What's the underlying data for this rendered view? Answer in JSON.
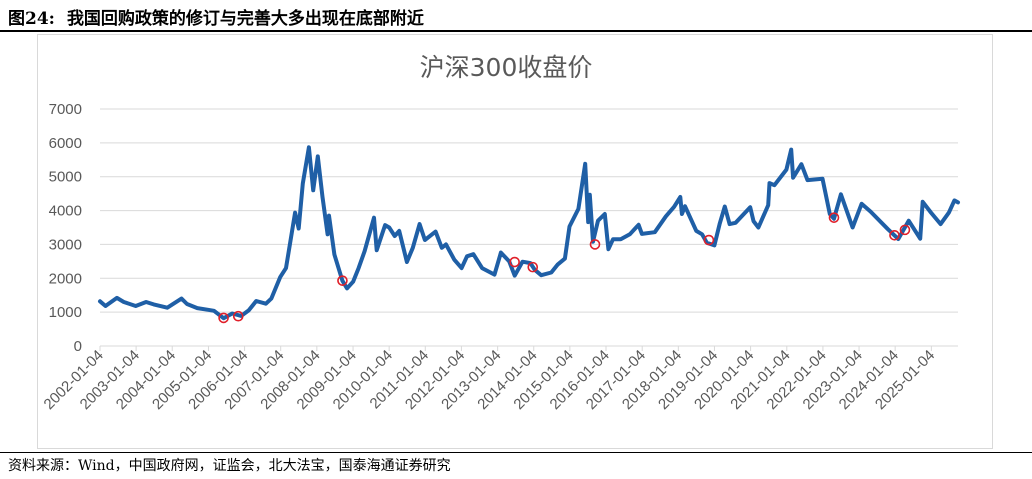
{
  "figure": {
    "number": "图24:",
    "title": "我国回购政策的修订与完善大多出现在底部附近",
    "source": "资料来源：Wind，中国政府网，证监会，北大法宝，国泰海通证券研究"
  },
  "colors": {
    "line": "#1f5fa6",
    "marker": "#e0202a",
    "grid": "#d9d9d9",
    "text": "#595959"
  },
  "chart_data": {
    "type": "line",
    "title": "沪深300收盘价",
    "xlabel": "",
    "ylabel": "",
    "ylim": [
      0,
      7000
    ],
    "xlim": [
      "2002-01-04",
      "2025-09-30"
    ],
    "yticks": [
      "0",
      "1000",
      "2000",
      "3000",
      "4000",
      "5000",
      "6000",
      "7000"
    ],
    "xticks": [
      "2002-01-04",
      "2003-01-04",
      "2004-01-04",
      "2005-01-04",
      "2006-01-04",
      "2007-01-04",
      "2008-01-04",
      "2009-01-04",
      "2010-01-04",
      "2011-01-04",
      "2012-01-04",
      "2013-01-04",
      "2014-01-04",
      "2015-01-04",
      "2016-01-04",
      "2017-01-04",
      "2018-01-04",
      "2019-01-04",
      "2020-01-04",
      "2021-01-04",
      "2022-01-04",
      "2023-01-04",
      "2024-01-04",
      "2025-01-04"
    ],
    "grid": "horizontal",
    "legend": "none",
    "series": [
      {
        "type": "line",
        "points": [
          [
            "2002-01-04",
            1320
          ],
          [
            "2002-03-01",
            1180
          ],
          [
            "2002-06-24",
            1420
          ],
          [
            "2002-09-01",
            1300
          ],
          [
            "2002-12-31",
            1180
          ],
          [
            "2003-04-15",
            1300
          ],
          [
            "2003-07-01",
            1230
          ],
          [
            "2003-11-15",
            1130
          ],
          [
            "2004-04-07",
            1400
          ],
          [
            "2004-06-01",
            1240
          ],
          [
            "2004-09-13",
            1120
          ],
          [
            "2004-12-31",
            1070
          ],
          [
            "2005-03-01",
            1040
          ],
          [
            "2005-06-06",
            820
          ],
          [
            "2005-09-01",
            960
          ],
          [
            "2005-12-01",
            890
          ],
          [
            "2006-02-15",
            1050
          ],
          [
            "2006-05-01",
            1330
          ],
          [
            "2006-08-07",
            1250
          ],
          [
            "2006-10-01",
            1400
          ],
          [
            "2006-12-31",
            2040
          ],
          [
            "2007-02-27",
            2300
          ],
          [
            "2007-05-29",
            3940
          ],
          [
            "2007-07-05",
            3470
          ],
          [
            "2007-08-15",
            4800
          ],
          [
            "2007-10-16",
            5870
          ],
          [
            "2007-11-28",
            4600
          ],
          [
            "2008-01-14",
            5600
          ],
          [
            "2008-03-01",
            4400
          ],
          [
            "2008-04-22",
            3300
          ],
          [
            "2008-05-06",
            3850
          ],
          [
            "2008-06-30",
            2700
          ],
          [
            "2008-09-18",
            1930
          ],
          [
            "2008-11-04",
            1700
          ],
          [
            "2009-01-05",
            1900
          ],
          [
            "2009-03-01",
            2300
          ],
          [
            "2009-05-01",
            2800
          ],
          [
            "2009-08-04",
            3790
          ],
          [
            "2009-08-31",
            2830
          ],
          [
            "2009-11-24",
            3570
          ],
          [
            "2010-01-04",
            3500
          ],
          [
            "2010-03-01",
            3250
          ],
          [
            "2010-04-15",
            3400
          ],
          [
            "2010-07-02",
            2480
          ],
          [
            "2010-08-31",
            2900
          ],
          [
            "2010-11-08",
            3600
          ],
          [
            "2010-12-31",
            3130
          ],
          [
            "2011-04-18",
            3380
          ],
          [
            "2011-06-20",
            2900
          ],
          [
            "2011-08-01",
            3000
          ],
          [
            "2011-10-24",
            2550
          ],
          [
            "2012-01-06",
            2300
          ],
          [
            "2012-03-01",
            2650
          ],
          [
            "2012-05-04",
            2710
          ],
          [
            "2012-07-31",
            2300
          ],
          [
            "2012-12-03",
            2110
          ],
          [
            "2013-02-06",
            2760
          ],
          [
            "2013-05-01",
            2500
          ],
          [
            "2013-06-25",
            2080
          ],
          [
            "2013-09-12",
            2490
          ],
          [
            "2013-12-01",
            2450
          ],
          [
            "2014-01-15",
            2250
          ],
          [
            "2014-03-20",
            2090
          ],
          [
            "2014-06-30",
            2170
          ],
          [
            "2014-09-01",
            2400
          ],
          [
            "2014-11-15",
            2580
          ],
          [
            "2014-12-31",
            3530
          ],
          [
            "2015-03-31",
            4050
          ],
          [
            "2015-06-08",
            5380
          ],
          [
            "2015-07-08",
            3660
          ],
          [
            "2015-07-24",
            4470
          ],
          [
            "2015-08-26",
            3080
          ],
          [
            "2015-10-15",
            3700
          ],
          [
            "2015-12-23",
            3900
          ],
          [
            "2016-01-28",
            2860
          ],
          [
            "2016-03-15",
            3150
          ],
          [
            "2016-06-01",
            3150
          ],
          [
            "2016-09-01",
            3300
          ],
          [
            "2016-11-29",
            3580
          ],
          [
            "2017-01-01",
            3310
          ],
          [
            "2017-05-11",
            3360
          ],
          [
            "2017-08-31",
            3830
          ],
          [
            "2017-11-22",
            4110
          ],
          [
            "2018-01-24",
            4400
          ],
          [
            "2018-02-09",
            3900
          ],
          [
            "2018-03-12",
            4130
          ],
          [
            "2018-07-05",
            3400
          ],
          [
            "2018-09-01",
            3300
          ],
          [
            "2018-10-19",
            3050
          ],
          [
            "2019-01-03",
            2970
          ],
          [
            "2019-02-25",
            3600
          ],
          [
            "2019-04-19",
            4120
          ],
          [
            "2019-06-06",
            3600
          ],
          [
            "2019-08-06",
            3640
          ],
          [
            "2019-12-31",
            4100
          ],
          [
            "2020-02-03",
            3690
          ],
          [
            "2020-03-23",
            3500
          ],
          [
            "2020-06-30",
            4160
          ],
          [
            "2020-07-13",
            4810
          ],
          [
            "2020-09-01",
            4750
          ],
          [
            "2020-12-31",
            5210
          ],
          [
            "2021-02-18",
            5800
          ],
          [
            "2021-03-09",
            4970
          ],
          [
            "2021-06-01",
            5370
          ],
          [
            "2021-08-01",
            4900
          ],
          [
            "2021-12-31",
            4940
          ],
          [
            "2022-03-15",
            3900
          ],
          [
            "2022-04-26",
            3760
          ],
          [
            "2022-07-05",
            4480
          ],
          [
            "2022-10-31",
            3500
          ],
          [
            "2023-01-30",
            4200
          ],
          [
            "2023-05-01",
            3970
          ],
          [
            "2023-10-23",
            3450
          ],
          [
            "2024-02-05",
            3160
          ],
          [
            "2024-05-20",
            3700
          ],
          [
            "2024-09-13",
            3170
          ],
          [
            "2024-10-08",
            4260
          ],
          [
            "2024-12-31",
            3940
          ],
          [
            "2025-04-07",
            3600
          ],
          [
            "2025-06-30",
            3940
          ],
          [
            "2025-08-25",
            4300
          ],
          [
            "2025-09-30",
            4240
          ]
        ]
      },
      {
        "type": "scatter",
        "marker": "open-circle",
        "points": [
          [
            "2005-06-06",
            830
          ],
          [
            "2005-11-01",
            880
          ],
          [
            "2008-09-19",
            1930
          ],
          [
            "2013-06-25",
            2480
          ],
          [
            "2013-12-25",
            2330
          ],
          [
            "2015-09-15",
            3000
          ],
          [
            "2018-11-09",
            3130
          ],
          [
            "2022-04-26",
            3790
          ],
          [
            "2023-12-28",
            3270
          ],
          [
            "2024-04-12",
            3430
          ]
        ]
      }
    ]
  }
}
